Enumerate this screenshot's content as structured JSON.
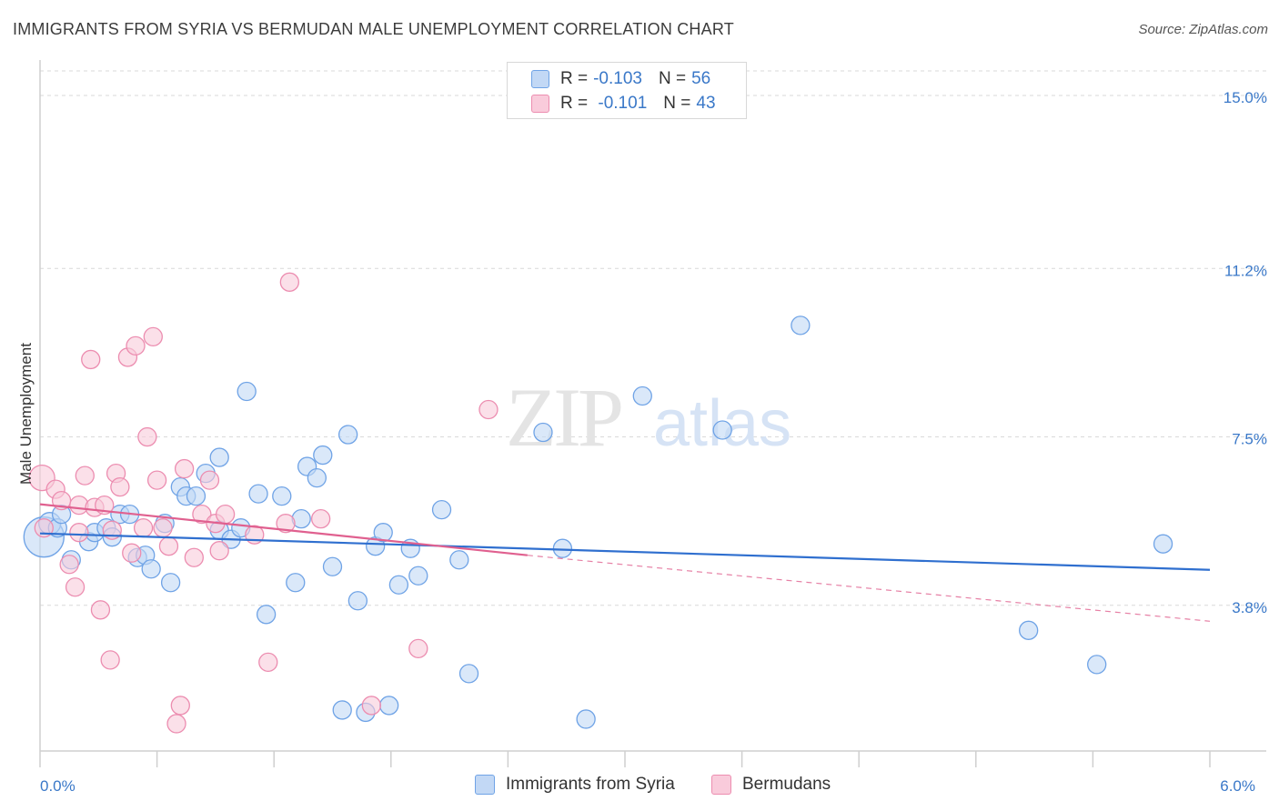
{
  "header": {
    "title": "IMMIGRANTS FROM SYRIA VS BERMUDAN MALE UNEMPLOYMENT CORRELATION CHART",
    "source": "Source: ZipAtlas.com"
  },
  "watermark": {
    "zip": "ZIP",
    "atlas": "atlas"
  },
  "legend": {
    "rows": [
      {
        "r_label": "R =",
        "r_value": "-0.103",
        "n_label": "N =",
        "n_value": "56"
      },
      {
        "r_label": "R =",
        "r_value": " -0.101",
        "n_label": "N =",
        "n_value": "43"
      }
    ]
  },
  "chart_data": {
    "type": "scatter",
    "title": "IMMIGRANTS FROM SYRIA VS BERMUDAN MALE UNEMPLOYMENT CORRELATION CHART",
    "xlabel": "",
    "ylabel": "Male Unemployment",
    "xlim": [
      0.0,
      6.0
    ],
    "ylim": [
      0.6,
      15.6
    ],
    "x_tick_labels": [
      {
        "value": 0.0,
        "label": "0.0%"
      },
      {
        "value": 6.0,
        "label": "6.0%"
      }
    ],
    "y_ticks": [
      {
        "value": 3.8,
        "label": "3.8%"
      },
      {
        "value": 7.5,
        "label": "7.5%"
      },
      {
        "value": 11.2,
        "label": "11.2%"
      },
      {
        "value": 15.0,
        "label": "15.0%"
      }
    ],
    "grid": true,
    "legend_position": "top-center",
    "series": [
      {
        "name": "Immigrants from Syria",
        "color": "#6fa3e6",
        "fill": "#c2d8f5",
        "trend_color": "#2f6fcf",
        "trend": {
          "x0": 0.0,
          "y0": 5.38,
          "x1": 6.0,
          "y1": 4.58
        },
        "points": [
          [
            0.02,
            5.3,
            22
          ],
          [
            0.05,
            5.6,
            12
          ],
          [
            0.09,
            5.5,
            10
          ],
          [
            0.11,
            5.8,
            10
          ],
          [
            0.16,
            4.8,
            10
          ],
          [
            0.25,
            5.2,
            10
          ],
          [
            0.28,
            5.4,
            10
          ],
          [
            0.34,
            5.5,
            10
          ],
          [
            0.37,
            5.3,
            10
          ],
          [
            0.41,
            5.8,
            10
          ],
          [
            0.46,
            5.8,
            10
          ],
          [
            0.5,
            4.85,
            10
          ],
          [
            0.54,
            4.9,
            10
          ],
          [
            0.57,
            4.6,
            10
          ],
          [
            0.64,
            5.6,
            10
          ],
          [
            0.67,
            4.3,
            10
          ],
          [
            0.72,
            6.4,
            10
          ],
          [
            0.75,
            6.2,
            10
          ],
          [
            0.8,
            6.2,
            10
          ],
          [
            0.85,
            6.7,
            10
          ],
          [
            0.92,
            5.45,
            10
          ],
          [
            0.92,
            7.05,
            10
          ],
          [
            0.98,
            5.25,
            10
          ],
          [
            1.03,
            5.5,
            10
          ],
          [
            1.06,
            8.5,
            10
          ],
          [
            1.12,
            6.25,
            10
          ],
          [
            1.16,
            3.6,
            10
          ],
          [
            1.24,
            6.2,
            10
          ],
          [
            1.31,
            4.3,
            10
          ],
          [
            1.34,
            5.7,
            10
          ],
          [
            1.37,
            6.85,
            10
          ],
          [
            1.42,
            6.6,
            10
          ],
          [
            1.45,
            7.1,
            10
          ],
          [
            1.5,
            4.65,
            10
          ],
          [
            1.55,
            1.5,
            10
          ],
          [
            1.58,
            7.55,
            10
          ],
          [
            1.63,
            3.9,
            10
          ],
          [
            1.67,
            1.45,
            10
          ],
          [
            1.72,
            5.1,
            10
          ],
          [
            1.76,
            5.4,
            10
          ],
          [
            1.79,
            1.6,
            10
          ],
          [
            1.84,
            4.25,
            10
          ],
          [
            1.9,
            5.05,
            10
          ],
          [
            1.94,
            4.45,
            10
          ],
          [
            2.06,
            5.9,
            10
          ],
          [
            2.15,
            4.8,
            10
          ],
          [
            2.2,
            2.3,
            10
          ],
          [
            2.58,
            7.6,
            10
          ],
          [
            2.68,
            5.05,
            10
          ],
          [
            2.8,
            1.3,
            10
          ],
          [
            3.09,
            8.4,
            10
          ],
          [
            3.5,
            7.65,
            10
          ],
          [
            3.9,
            9.95,
            10
          ],
          [
            5.07,
            3.25,
            10
          ],
          [
            5.42,
            2.5,
            10
          ],
          [
            5.76,
            5.15,
            10
          ]
        ]
      },
      {
        "name": "Bermudans",
        "color": "#ec8db0",
        "fill": "#f9cbdb",
        "trend_color": "#e0608f",
        "trend": {
          "x0": 0.0,
          "y0": 6.02,
          "x1": 2.5,
          "y1": 4.9
        },
        "trend_dashed": {
          "x0": 2.5,
          "y0": 4.9,
          "x1": 6.0,
          "y1": 3.45
        },
        "points": [
          [
            0.01,
            6.6,
            14
          ],
          [
            0.02,
            5.5,
            10
          ],
          [
            0.08,
            6.35,
            10
          ],
          [
            0.11,
            6.1,
            10
          ],
          [
            0.15,
            4.7,
            10
          ],
          [
            0.18,
            4.2,
            10
          ],
          [
            0.2,
            6.0,
            10
          ],
          [
            0.2,
            5.4,
            10
          ],
          [
            0.23,
            6.65,
            10
          ],
          [
            0.26,
            9.2,
            10
          ],
          [
            0.28,
            5.95,
            10
          ],
          [
            0.31,
            3.7,
            10
          ],
          [
            0.33,
            6.0,
            10
          ],
          [
            0.36,
            2.6,
            10
          ],
          [
            0.37,
            5.45,
            10
          ],
          [
            0.39,
            6.7,
            10
          ],
          [
            0.41,
            6.4,
            10
          ],
          [
            0.45,
            9.25,
            10
          ],
          [
            0.47,
            4.95,
            10
          ],
          [
            0.49,
            9.5,
            10
          ],
          [
            0.53,
            5.5,
            10
          ],
          [
            0.55,
            7.5,
            10
          ],
          [
            0.58,
            9.7,
            10
          ],
          [
            0.6,
            6.55,
            10
          ],
          [
            0.63,
            5.5,
            10
          ],
          [
            0.7,
            1.2,
            10
          ],
          [
            0.72,
            1.6,
            10
          ],
          [
            0.74,
            6.8,
            10
          ],
          [
            0.79,
            4.85,
            10
          ],
          [
            0.83,
            5.8,
            10
          ],
          [
            0.87,
            6.55,
            10
          ],
          [
            0.9,
            5.6,
            10
          ],
          [
            0.92,
            5.0,
            10
          ],
          [
            0.95,
            5.8,
            10
          ],
          [
            1.17,
            2.55,
            10
          ],
          [
            1.26,
            5.6,
            10
          ],
          [
            1.28,
            10.9,
            10
          ],
          [
            1.7,
            1.6,
            10
          ],
          [
            1.94,
            2.85,
            10
          ],
          [
            2.3,
            8.1,
            10
          ],
          [
            1.44,
            5.7,
            10
          ],
          [
            1.1,
            5.35,
            10
          ],
          [
            0.66,
            5.1,
            10
          ]
        ]
      }
    ]
  }
}
